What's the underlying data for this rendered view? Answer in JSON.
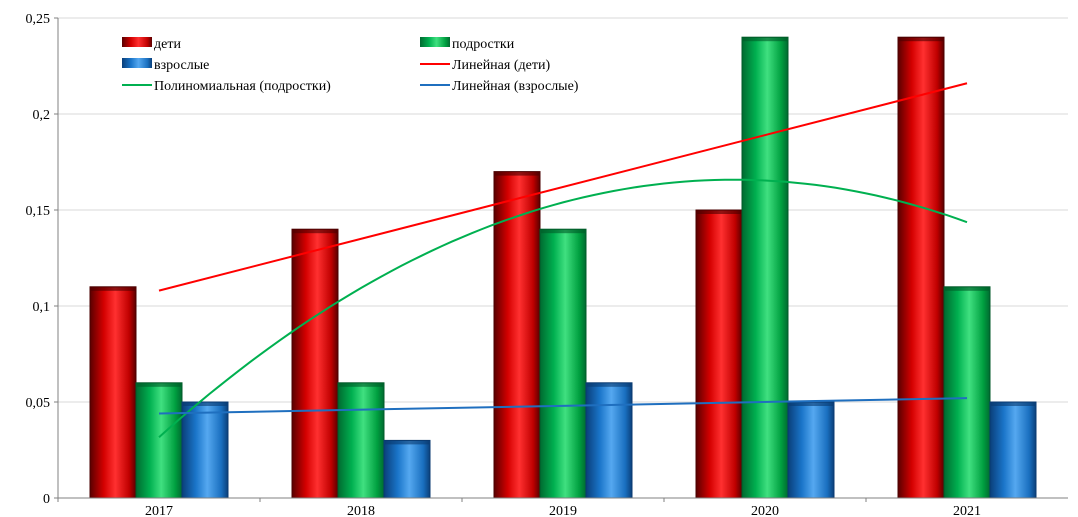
{
  "chart_data": {
    "type": "bar",
    "categories": [
      "2017",
      "2018",
      "2019",
      "2020",
      "2021"
    ],
    "series": [
      {
        "name": "дети",
        "values": [
          0.11,
          0.14,
          0.17,
          0.15,
          0.24
        ],
        "color": "#c00000"
      },
      {
        "name": "подростки",
        "values": [
          0.06,
          0.06,
          0.14,
          0.24,
          0.11
        ],
        "color": "#00a651"
      },
      {
        "name": "взрослые",
        "values": [
          0.05,
          0.03,
          0.06,
          0.05,
          0.05
        ],
        "color": "#1a75c9"
      }
    ],
    "trendlines": [
      {
        "name": "Линейная (дети)",
        "kind": "linear",
        "series": "дети",
        "values": [
          0.108,
          0.135,
          0.162,
          0.189,
          0.216
        ],
        "color": "#ff0000"
      },
      {
        "name": "Полиномиальная (подростки)",
        "kind": "polynomial",
        "series": "подростки",
        "values": [
          0.032,
          0.109,
          0.153,
          0.167,
          0.143
        ],
        "color": "#00b050"
      },
      {
        "name": "Линейная (взрослые)",
        "kind": "linear",
        "series": "взрослые",
        "values": [
          0.044,
          0.046,
          0.048,
          0.05,
          0.052
        ],
        "color": "#1f6fbf"
      }
    ],
    "y_ticks": [
      "0",
      "0,05",
      "0,1",
      "0,15",
      "0,2",
      "0,25"
    ],
    "y_tick_values": [
      0,
      0.05,
      0.1,
      0.15,
      0.2,
      0.25
    ],
    "ylim": [
      0,
      0.25
    ],
    "title": "",
    "xlabel": "",
    "ylabel": "",
    "grid": true,
    "legend": "top-left"
  }
}
